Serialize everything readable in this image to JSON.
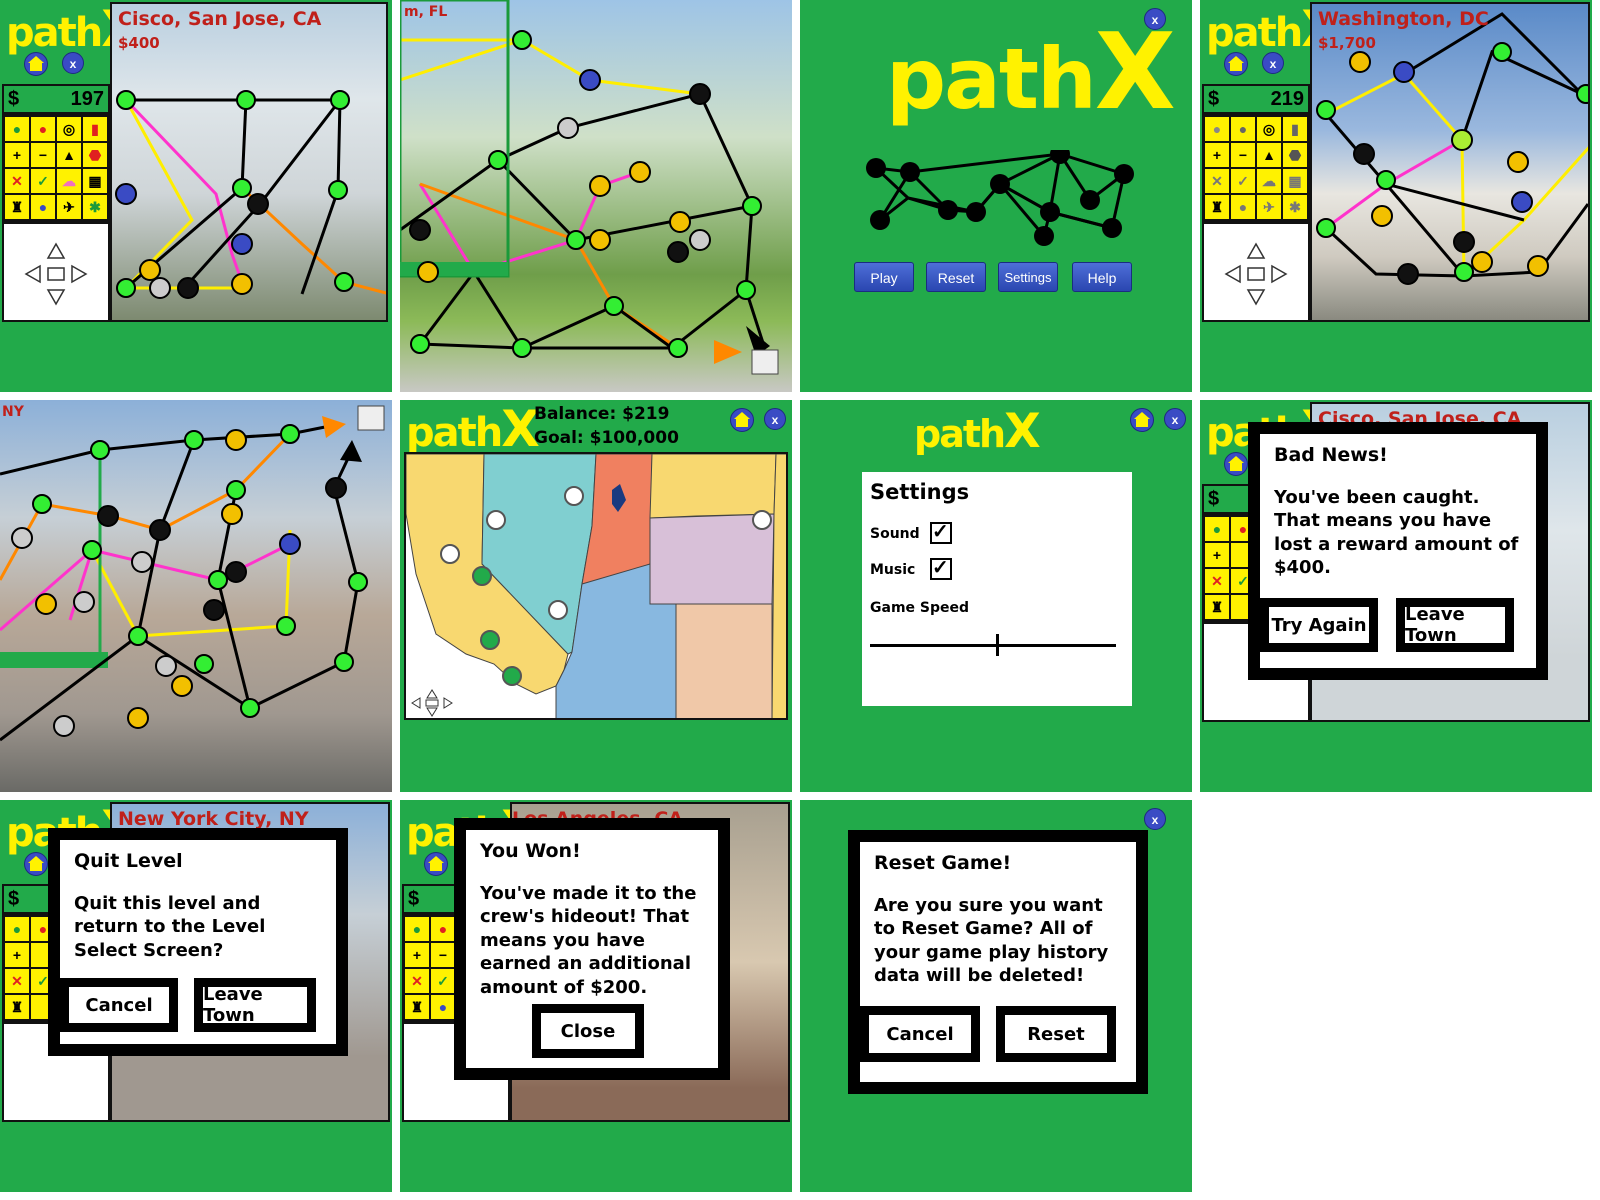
{
  "logo": {
    "path": "path",
    "x": "X"
  },
  "close_label": "x",
  "screens": {
    "game_sanjose": {
      "city": "Cisco, San Jose, CA",
      "reward": "$400",
      "money_sign": "$",
      "money": "197"
    },
    "game_florida": {
      "city_fragment": "m, FL"
    },
    "title": {
      "buttons": [
        "Play",
        "Reset",
        "Settings",
        "Help"
      ]
    },
    "game_dc": {
      "city": "Washington, DC",
      "reward": "$1,700",
      "money_sign": "$",
      "money": "219"
    },
    "game_ny": {
      "city_fragment": "NY"
    },
    "map": {
      "balance": "Balance: $219",
      "goal": "Goal: $100,000"
    },
    "settings": {
      "title": "Settings",
      "sound": "Sound",
      "music": "Music",
      "speed": "Game Speed",
      "sound_on": true,
      "music_on": true,
      "speed_level": 0.52
    },
    "caught": {
      "city": "Cisco, San Jose, CA",
      "title": "Bad News!",
      "message": "You've been caught. That means you have lost a reward amount of  $400.",
      "btn_left": "Try Again",
      "btn_right": "Leave Town",
      "money_sign": "$"
    },
    "quit": {
      "city": "New York City, NY",
      "title": "Quit Level",
      "message": "Quit this level and return to the Level Select Screen?",
      "btn_left": "Cancel",
      "btn_right": "Leave Town",
      "money_sign": "$"
    },
    "won": {
      "city": "Los Angeles, CA",
      "title": "You Won!",
      "message": "You've made it to the crew's hideout! That means you have earned an additional amount of  $200.",
      "btn": "Close",
      "money_sign": "$"
    },
    "reset": {
      "title": "Reset Game!",
      "message": "Are you sure you want to Reset Game? All of your game play history data will be deleted!",
      "btn_left": "Cancel",
      "btn_right": "Reset"
    }
  },
  "colors": {
    "green": "#22aa4a",
    "yellow": "#fff200",
    "red": "#c0201a",
    "blue": "#3a4bc4"
  }
}
